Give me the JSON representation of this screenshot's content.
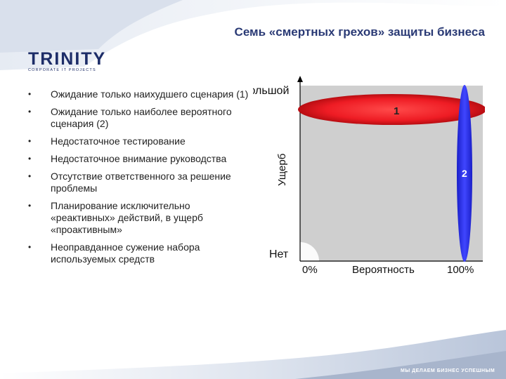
{
  "slide": {
    "title": "Семь «смертных грехов» защиты бизнеса",
    "logo": {
      "word": "TRINITY",
      "subtitle": "CORPORATE IT PROJECTS"
    },
    "bullets": [
      "Ожидание только наихудшего сценария (1)",
      "Ожидание только наиболее вероятного сценария (2)",
      "Недостаточное тестирование",
      "Недостаточное внимание руководства",
      "Отсутствие ответственного за решение проблемы",
      "Планирование исключительно «реактивных» действий, в ущерб «проактивным»",
      "Неоправданное сужение набора используемых средств"
    ],
    "tagline": "МЫ ДЕЛАЕМ БИЗНЕС УСПЕШНЫМ"
  },
  "diagram": {
    "y_axis_label": "Ущерб",
    "y_top_label": "Большой",
    "y_bottom_label": "Нет",
    "x_axis_label": "Вероятность",
    "x_left_label": "0%",
    "x_right_label": "100%",
    "marker_1": "1",
    "marker_2": "2",
    "colors": {
      "red_zone": "#e8202a",
      "blue_zone": "#2b2ef0",
      "field": "#cfcfcf"
    }
  }
}
